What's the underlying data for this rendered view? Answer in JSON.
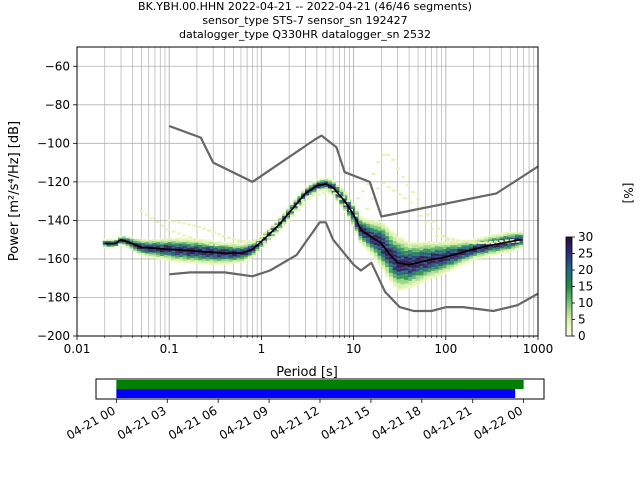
{
  "chart_data": {
    "type": "heatmap",
    "title_lines": [
      "BK.YBH.00.HHN   2022-04-21 -- 2022-04-21  (46/46 segments)",
      "sensor_type STS-7 sensor_sn 192427",
      "datalogger_type Q330HR datalogger_sn 2532"
    ],
    "xlabel": "Period [s]",
    "ylabel": "Power [m²/s⁴/Hz] [dB]",
    "x_scale": "log",
    "xlim": [
      0.01,
      1000
    ],
    "ylim": [
      -200,
      -50
    ],
    "x_ticks": [
      0.01,
      0.1,
      1,
      10,
      100,
      1000
    ],
    "x_tick_labels": [
      "0.01",
      "0.1",
      "1",
      "10",
      "100",
      "1000"
    ],
    "y_ticks": [
      -200,
      -180,
      -160,
      -140,
      -120,
      -100,
      -80,
      -60
    ],
    "y_tick_labels": [
      "−200",
      "−180",
      "−160",
      "−140",
      "−120",
      "−100",
      "−80",
      "−60"
    ],
    "grid": true,
    "colorbar": {
      "label": "[%]",
      "range": [
        0,
        30
      ],
      "ticks": [
        0,
        5,
        10,
        15,
        20,
        25,
        30
      ],
      "tick_labels": [
        "0",
        "5",
        "10",
        "15",
        "20",
        "25",
        "30"
      ],
      "colors": [
        "#ffffe5",
        "#d9f0a3",
        "#78c679",
        "#238b45",
        "#1d6b80",
        "#2c2f7c",
        "#2a0a3d"
      ]
    },
    "series": [
      {
        "role": "noise-model-high",
        "color": "#666666",
        "points": [
          [
            0.1,
            -91
          ],
          [
            0.22,
            -97
          ],
          [
            0.3,
            -110
          ],
          [
            0.8,
            -120
          ],
          [
            3.8,
            -98
          ],
          [
            4.5,
            -96
          ],
          [
            6.5,
            -102
          ],
          [
            8.0,
            -115
          ],
          [
            15,
            -120
          ],
          [
            20,
            -138
          ],
          [
            354,
            -126
          ],
          [
            1000,
            -112
          ]
        ]
      },
      {
        "role": "noise-model-low",
        "color": "#666666",
        "points": [
          [
            0.1,
            -168
          ],
          [
            0.17,
            -167
          ],
          [
            0.4,
            -167
          ],
          [
            0.8,
            -169
          ],
          [
            1.24,
            -166
          ],
          [
            2.4,
            -158
          ],
          [
            4.3,
            -141
          ],
          [
            5.0,
            -141
          ],
          [
            6.0,
            -150
          ],
          [
            10,
            -163
          ],
          [
            12,
            -166
          ],
          [
            15.6,
            -162
          ],
          [
            21.9,
            -177
          ],
          [
            31.6,
            -185
          ],
          [
            45,
            -187
          ],
          [
            70,
            -187
          ],
          [
            101,
            -185
          ],
          [
            154,
            -185
          ],
          [
            328,
            -187
          ],
          [
            600,
            -184
          ],
          [
            1000,
            -178
          ]
        ]
      },
      {
        "role": "median-psd",
        "color": "#000000",
        "points": [
          [
            0.02,
            -152
          ],
          [
            0.026,
            -152
          ],
          [
            0.03,
            -150
          ],
          [
            0.035,
            -151
          ],
          [
            0.05,
            -154
          ],
          [
            0.1,
            -155
          ],
          [
            0.2,
            -156
          ],
          [
            0.4,
            -157
          ],
          [
            0.6,
            -157
          ],
          [
            0.8,
            -155
          ],
          [
            1.0,
            -151
          ],
          [
            1.5,
            -143
          ],
          [
            2.0,
            -136
          ],
          [
            3.0,
            -126
          ],
          [
            4.0,
            -122
          ],
          [
            5.0,
            -121
          ],
          [
            6.0,
            -123
          ],
          [
            8.0,
            -130
          ],
          [
            10,
            -137
          ],
          [
            12,
            -145
          ],
          [
            15,
            -148
          ],
          [
            20,
            -152
          ],
          [
            25,
            -158
          ],
          [
            30,
            -162
          ],
          [
            40,
            -163
          ],
          [
            60,
            -161
          ],
          [
            100,
            -159
          ],
          [
            200,
            -155
          ],
          [
            300,
            -153
          ],
          [
            500,
            -151
          ],
          [
            650,
            -150
          ]
        ]
      }
    ],
    "density": {
      "periods": [
        0.02,
        0.03,
        0.05,
        0.08,
        0.12,
        0.2,
        0.3,
        0.5,
        0.8,
        1.0,
        1.5,
        2.0,
        3.0,
        4.0,
        5.0,
        6.0,
        8.0,
        10,
        12,
        15,
        20,
        30,
        40,
        60,
        100,
        150,
        200,
        300,
        500,
        650
      ],
      "spread": [
        2,
        2,
        4,
        5,
        6,
        6,
        6,
        5,
        4,
        3,
        3,
        3,
        3,
        3,
        3,
        4,
        5,
        6,
        7,
        8,
        12,
        14,
        12,
        10,
        8,
        6,
        5,
        5,
        5,
        4
      ]
    },
    "faint_traces": [
      [
        [
          0.1,
          -140
        ],
        [
          0.2,
          -143
        ],
        [
          0.5,
          -150
        ],
        [
          1.0,
          -152
        ],
        [
          2.0,
          -140
        ],
        [
          4.0,
          -124
        ],
        [
          6.0,
          -124
        ],
        [
          10,
          -132
        ],
        [
          15,
          -120
        ],
        [
          20,
          -106
        ],
        [
          25,
          -106
        ],
        [
          35,
          -118
        ],
        [
          60,
          -135
        ],
        [
          100,
          -150
        ],
        [
          300,
          -152
        ],
        [
          600,
          -151
        ]
      ],
      [
        [
          0.05,
          -135
        ],
        [
          0.1,
          -145
        ],
        [
          0.3,
          -153
        ],
        [
          1.0,
          -150
        ],
        [
          3.0,
          -128
        ],
        [
          6.0,
          -125
        ],
        [
          12,
          -140
        ],
        [
          20,
          -120
        ],
        [
          40,
          -130
        ],
        [
          80,
          -148
        ],
        [
          200,
          -152
        ],
        [
          600,
          -150
        ]
      ]
    ],
    "timeline": {
      "tick_labels": [
        "04-21 00",
        "04-21 03",
        "04-21 06",
        "04-21 09",
        "04-21 12",
        "04-21 15",
        "04-21 18",
        "04-21 21",
        "04-22 00"
      ],
      "tick_hours": [
        0,
        3,
        6,
        9,
        12,
        15,
        18,
        21,
        24
      ],
      "range_hours": [
        -1.2,
        25.2
      ],
      "segments": [
        {
          "color": "#008000",
          "start_hour": 0,
          "end_hour": 24.0
        },
        {
          "color": "#0000ff",
          "start_hour": 0,
          "end_hour": 23.5
        }
      ]
    }
  }
}
